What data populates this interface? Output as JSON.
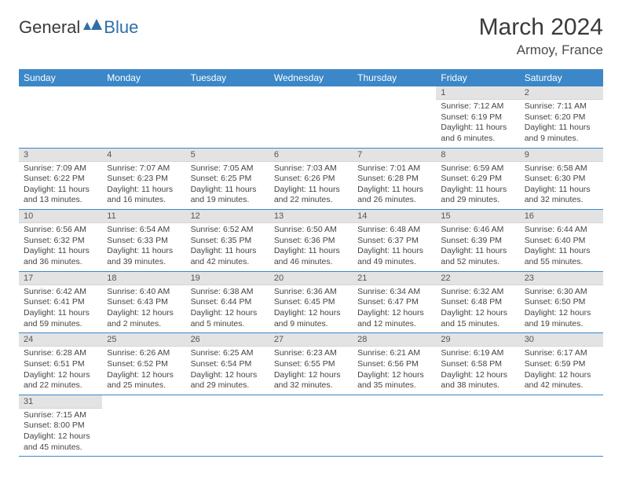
{
  "logo": {
    "textDark": "General",
    "textBlue": "Blue"
  },
  "title": "March 2024",
  "location": "Armoy, France",
  "colors": {
    "headerBg": "#3b87c8",
    "headerText": "#ffffff",
    "dayBarBg": "#e3e3e3",
    "rowDivider": "#3b87c8",
    "logoBlue": "#2f6fa8"
  },
  "weekdays": [
    "Sunday",
    "Monday",
    "Tuesday",
    "Wednesday",
    "Thursday",
    "Friday",
    "Saturday"
  ],
  "weeks": [
    [
      null,
      null,
      null,
      null,
      null,
      {
        "n": "1",
        "sunrise": "7:12 AM",
        "sunset": "6:19 PM",
        "daylight": "11 hours and 6 minutes."
      },
      {
        "n": "2",
        "sunrise": "7:11 AM",
        "sunset": "6:20 PM",
        "daylight": "11 hours and 9 minutes."
      }
    ],
    [
      {
        "n": "3",
        "sunrise": "7:09 AM",
        "sunset": "6:22 PM",
        "daylight": "11 hours and 13 minutes."
      },
      {
        "n": "4",
        "sunrise": "7:07 AM",
        "sunset": "6:23 PM",
        "daylight": "11 hours and 16 minutes."
      },
      {
        "n": "5",
        "sunrise": "7:05 AM",
        "sunset": "6:25 PM",
        "daylight": "11 hours and 19 minutes."
      },
      {
        "n": "6",
        "sunrise": "7:03 AM",
        "sunset": "6:26 PM",
        "daylight": "11 hours and 22 minutes."
      },
      {
        "n": "7",
        "sunrise": "7:01 AM",
        "sunset": "6:28 PM",
        "daylight": "11 hours and 26 minutes."
      },
      {
        "n": "8",
        "sunrise": "6:59 AM",
        "sunset": "6:29 PM",
        "daylight": "11 hours and 29 minutes."
      },
      {
        "n": "9",
        "sunrise": "6:58 AM",
        "sunset": "6:30 PM",
        "daylight": "11 hours and 32 minutes."
      }
    ],
    [
      {
        "n": "10",
        "sunrise": "6:56 AM",
        "sunset": "6:32 PM",
        "daylight": "11 hours and 36 minutes."
      },
      {
        "n": "11",
        "sunrise": "6:54 AM",
        "sunset": "6:33 PM",
        "daylight": "11 hours and 39 minutes."
      },
      {
        "n": "12",
        "sunrise": "6:52 AM",
        "sunset": "6:35 PM",
        "daylight": "11 hours and 42 minutes."
      },
      {
        "n": "13",
        "sunrise": "6:50 AM",
        "sunset": "6:36 PM",
        "daylight": "11 hours and 46 minutes."
      },
      {
        "n": "14",
        "sunrise": "6:48 AM",
        "sunset": "6:37 PM",
        "daylight": "11 hours and 49 minutes."
      },
      {
        "n": "15",
        "sunrise": "6:46 AM",
        "sunset": "6:39 PM",
        "daylight": "11 hours and 52 minutes."
      },
      {
        "n": "16",
        "sunrise": "6:44 AM",
        "sunset": "6:40 PM",
        "daylight": "11 hours and 55 minutes."
      }
    ],
    [
      {
        "n": "17",
        "sunrise": "6:42 AM",
        "sunset": "6:41 PM",
        "daylight": "11 hours and 59 minutes."
      },
      {
        "n": "18",
        "sunrise": "6:40 AM",
        "sunset": "6:43 PM",
        "daylight": "12 hours and 2 minutes."
      },
      {
        "n": "19",
        "sunrise": "6:38 AM",
        "sunset": "6:44 PM",
        "daylight": "12 hours and 5 minutes."
      },
      {
        "n": "20",
        "sunrise": "6:36 AM",
        "sunset": "6:45 PM",
        "daylight": "12 hours and 9 minutes."
      },
      {
        "n": "21",
        "sunrise": "6:34 AM",
        "sunset": "6:47 PM",
        "daylight": "12 hours and 12 minutes."
      },
      {
        "n": "22",
        "sunrise": "6:32 AM",
        "sunset": "6:48 PM",
        "daylight": "12 hours and 15 minutes."
      },
      {
        "n": "23",
        "sunrise": "6:30 AM",
        "sunset": "6:50 PM",
        "daylight": "12 hours and 19 minutes."
      }
    ],
    [
      {
        "n": "24",
        "sunrise": "6:28 AM",
        "sunset": "6:51 PM",
        "daylight": "12 hours and 22 minutes."
      },
      {
        "n": "25",
        "sunrise": "6:26 AM",
        "sunset": "6:52 PM",
        "daylight": "12 hours and 25 minutes."
      },
      {
        "n": "26",
        "sunrise": "6:25 AM",
        "sunset": "6:54 PM",
        "daylight": "12 hours and 29 minutes."
      },
      {
        "n": "27",
        "sunrise": "6:23 AM",
        "sunset": "6:55 PM",
        "daylight": "12 hours and 32 minutes."
      },
      {
        "n": "28",
        "sunrise": "6:21 AM",
        "sunset": "6:56 PM",
        "daylight": "12 hours and 35 minutes."
      },
      {
        "n": "29",
        "sunrise": "6:19 AM",
        "sunset": "6:58 PM",
        "daylight": "12 hours and 38 minutes."
      },
      {
        "n": "30",
        "sunrise": "6:17 AM",
        "sunset": "6:59 PM",
        "daylight": "12 hours and 42 minutes."
      }
    ],
    [
      {
        "n": "31",
        "sunrise": "7:15 AM",
        "sunset": "8:00 PM",
        "daylight": "12 hours and 45 minutes."
      },
      null,
      null,
      null,
      null,
      null,
      null
    ]
  ],
  "labels": {
    "sunrise": "Sunrise: ",
    "sunset": "Sunset: ",
    "daylight": "Daylight: "
  }
}
